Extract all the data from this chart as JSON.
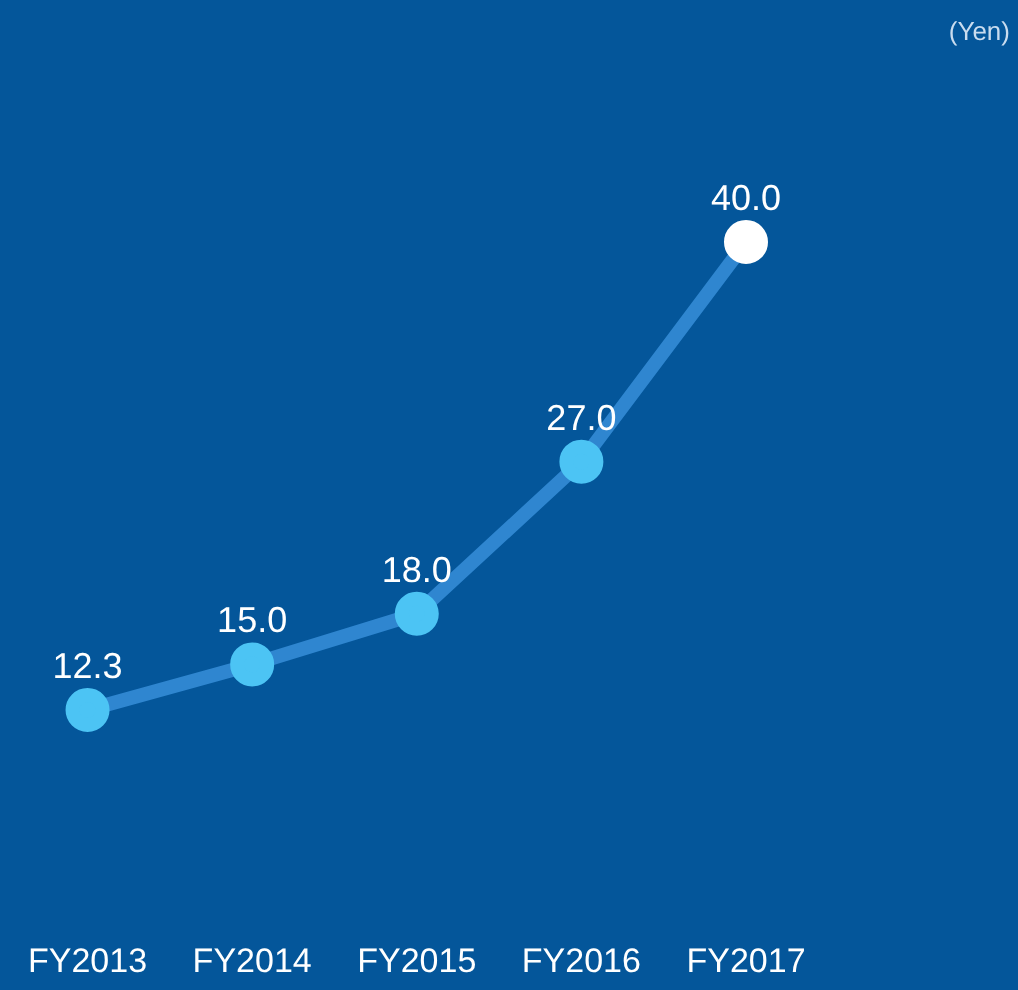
{
  "chart_data": {
    "type": "line",
    "categories": [
      "FY2013",
      "FY2014",
      "FY2015",
      "FY2016",
      "FY2017"
    ],
    "series": [
      {
        "color": "#2f86d0",
        "colors": [
          "#4cc4f4",
          "#4cc4f4",
          "#4cc4f4",
          "#4cc4f4",
          "#ffffff"
        ],
        "values": [
          12.3,
          15.0,
          18.0,
          27.0,
          40.0
        ],
        "value_labels": [
          "12.3",
          "15.0",
          "18.0",
          "27.0",
          "40.0"
        ]
      }
    ],
    "grid": false,
    "legend": false,
    "marker": "circle",
    "tick_labels": "x",
    "annotations": [
      "(Yen)"
    ]
  }
}
